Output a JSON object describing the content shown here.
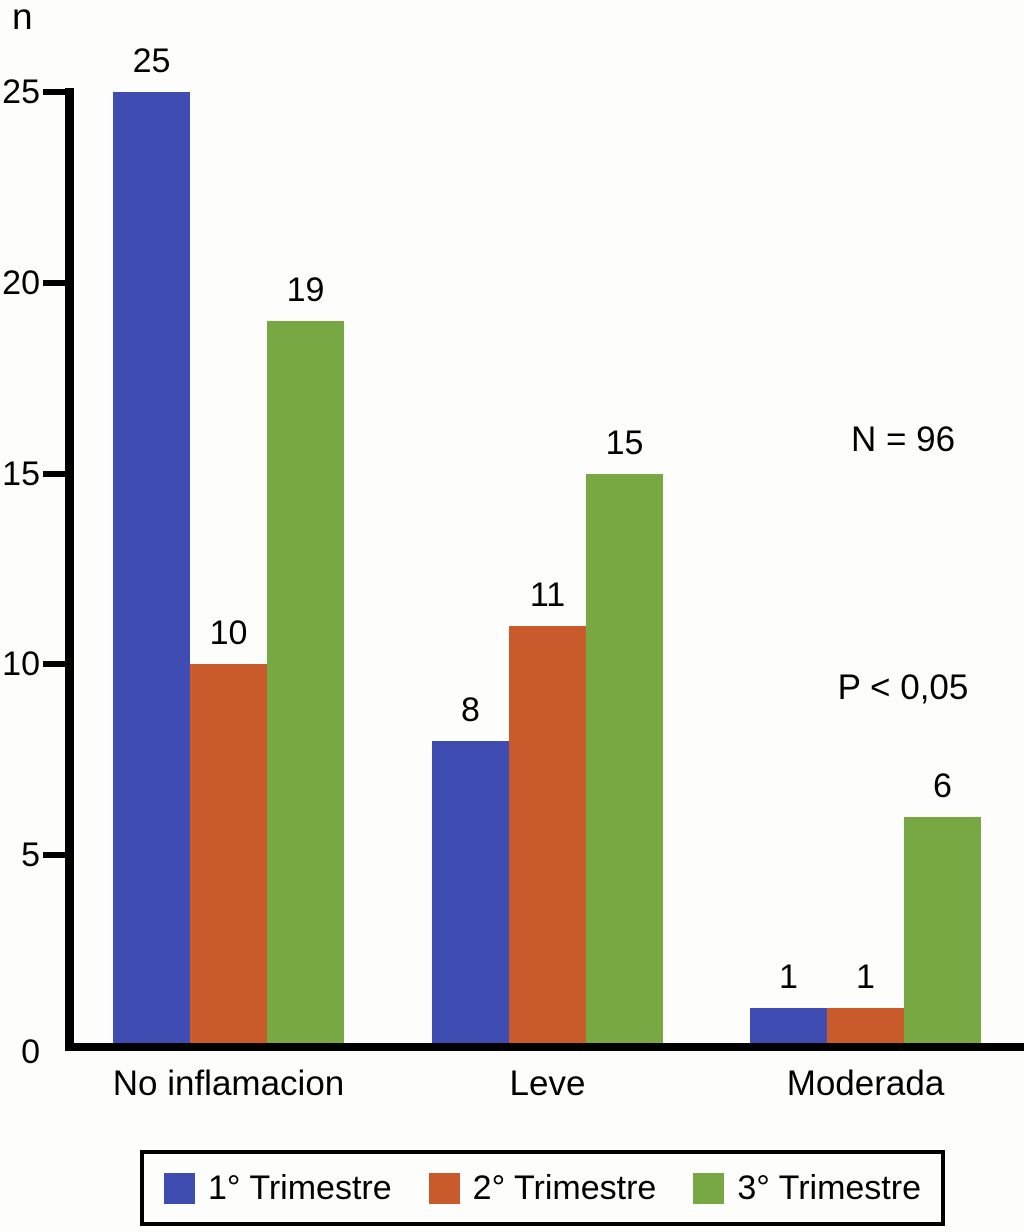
{
  "chart_data": {
    "type": "bar",
    "title": "",
    "ylabel": "n",
    "xlabel": "",
    "ylim": [
      0,
      25
    ],
    "yticks": [
      0,
      5,
      10,
      15,
      20,
      25
    ],
    "grid": false,
    "legend_position": "bottom",
    "value_labels": true,
    "categories": [
      "No inflamacion",
      "Leve",
      "Moderada"
    ],
    "series": [
      {
        "name": "1° Trimestre",
        "color": "#3F4CB2",
        "values": [
          25,
          8,
          1
        ]
      },
      {
        "name": "2° Trimestre",
        "color": "#C85A2C",
        "values": [
          10,
          11,
          1
        ]
      },
      {
        "name": "3° Trimestre",
        "color": "#78A843",
        "values": [
          19,
          15,
          6
        ]
      }
    ],
    "annotations": [
      {
        "text": "N = 96"
      },
      {
        "text": "P < 0,05"
      }
    ]
  }
}
